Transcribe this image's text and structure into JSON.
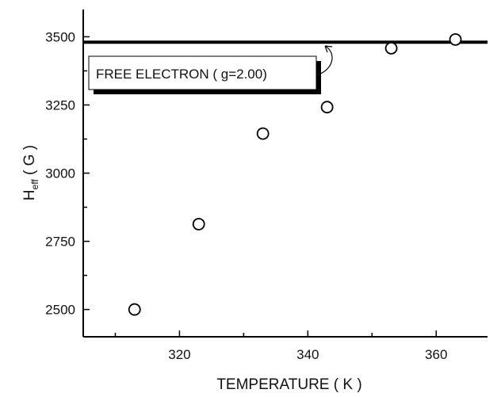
{
  "chart_data": {
    "type": "scatter",
    "xlabel": "TEMPERATURE ( K )",
    "ylabel": "H",
    "ylabel_sub": "eff",
    "ylabel_unit": " ( G )",
    "xlim": [
      305,
      368
    ],
    "ylim": [
      2400,
      3600
    ],
    "xticks_major": [
      320,
      340,
      360
    ],
    "xticks_minor": [
      310,
      330,
      350
    ],
    "yticks_major": [
      2500,
      2750,
      3000,
      3250,
      3500
    ],
    "yticks_minor": [
      2625,
      2875,
      3125,
      3375
    ],
    "points": [
      {
        "x": 313,
        "y": 2500
      },
      {
        "x": 323,
        "y": 2813
      },
      {
        "x": 333,
        "y": 3145
      },
      {
        "x": 343,
        "y": 3242
      },
      {
        "x": 353,
        "y": 3458
      },
      {
        "x": 363,
        "y": 3490
      }
    ],
    "reference_line": {
      "y": 3480
    },
    "annotation": {
      "text": "FREE ELECTRON ( g=2.00)"
    },
    "grid": false,
    "legend": "none"
  }
}
